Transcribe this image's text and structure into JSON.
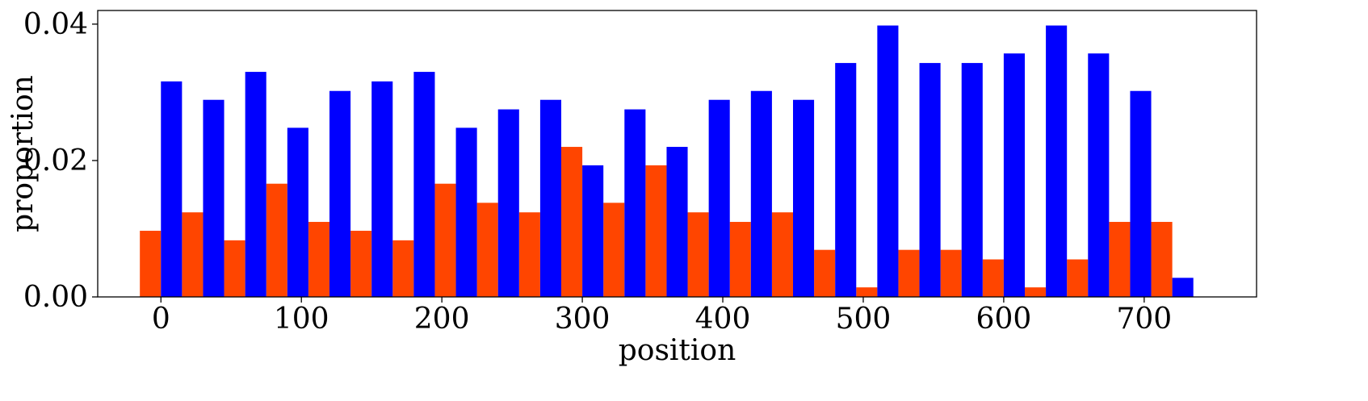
{
  "chart_data": {
    "type": "bar",
    "xlabel": "position",
    "ylabel": "proportion",
    "xlim": [
      -45,
      780
    ],
    "ylim": [
      0,
      0.042
    ],
    "x_ticks": [
      0,
      100,
      200,
      300,
      400,
      500,
      600,
      700
    ],
    "x_tick_labels": [
      "0",
      "100",
      "200",
      "300",
      "400",
      "500",
      "600",
      "700"
    ],
    "y_ticks": [
      0.0,
      0.02,
      0.04
    ],
    "y_tick_labels": [
      "0.00",
      "0.02",
      "0.04"
    ],
    "grid": false,
    "legend": "none",
    "bin_width": 15,
    "series": [
      {
        "color": "#FF4500",
        "x": [
          -7.5,
          22.5,
          52.5,
          82.5,
          112.5,
          142.5,
          172.5,
          202.5,
          232.5,
          262.5,
          292.5,
          322.5,
          352.5,
          382.5,
          412.5,
          442.5,
          472.5,
          502.5,
          532.5,
          562.5,
          592.5,
          622.5,
          652.5,
          682.5,
          712.5
        ],
        "values": [
          0.0097,
          0.0124,
          0.0083,
          0.0166,
          0.011,
          0.0097,
          0.0083,
          0.0166,
          0.0138,
          0.0124,
          0.022,
          0.0138,
          0.0193,
          0.0124,
          0.011,
          0.0124,
          0.0069,
          0.0014,
          0.0069,
          0.0069,
          0.0055,
          0.0014,
          0.0055,
          0.011,
          0.011
        ]
      },
      {
        "color": "#0000FF",
        "x": [
          7.5,
          37.5,
          67.5,
          97.5,
          127.5,
          157.5,
          187.5,
          217.5,
          247.5,
          277.5,
          307.5,
          337.5,
          367.5,
          397.5,
          427.5,
          457.5,
          487.5,
          517.5,
          547.5,
          577.5,
          607.5,
          637.5,
          667.5,
          697.5,
          727.5
        ],
        "values": [
          0.0316,
          0.0289,
          0.033,
          0.0248,
          0.0302,
          0.0316,
          0.033,
          0.0248,
          0.0275,
          0.0289,
          0.0193,
          0.0275,
          0.022,
          0.0289,
          0.0302,
          0.0289,
          0.0343,
          0.0398,
          0.0343,
          0.0343,
          0.0357,
          0.0398,
          0.0357,
          0.0302,
          0.0028
        ]
      }
    ]
  }
}
